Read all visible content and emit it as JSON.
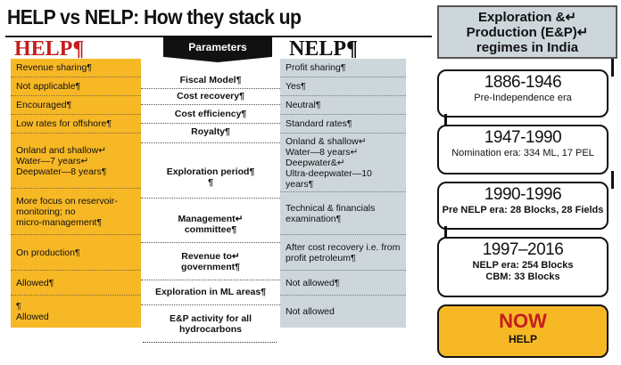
{
  "title": "HELP vs NELP: How they stack up",
  "headers": {
    "help": "HELP¶",
    "parameters": "Parameters",
    "nelp": "NELP¶"
  },
  "rows": [
    {
      "help": "Revenue sharing¶",
      "param": "Fiscal Model¶",
      "nelp": "Profit sharing¶"
    },
    {
      "help": "Not applicable¶",
      "param": "Cost recovery¶",
      "nelp": "Yes¶"
    },
    {
      "help": "Encouraged¶",
      "param": "Cost efficiency¶",
      "nelp": "Neutral¶"
    },
    {
      "help": "Low rates for offshore¶",
      "param": "Royalty¶",
      "nelp": "Standard rates¶"
    },
    {
      "help": "Onland and shallow↵\nWater—7 years↵\nDeepwater—8 years¶",
      "param": "Exploration period¶\n¶",
      "nelp": "Onland & shallow↵\nWater—8 years↵\nDeepwater&↵\nUltra-deepwater—10 years¶"
    },
    {
      "help": "More focus on reservoir-\nmonitoring; no\nmicro-management¶",
      "param": "Management↵\ncommittee¶",
      "nelp": "Technical & financials\nexamination¶"
    },
    {
      "help": "On production¶",
      "param": "Revenue to↵\ngovernment¶",
      "nelp": "After cost recovery i.e. from\nprofit petroleum¶"
    },
    {
      "help": "Allowed¶",
      "param": "Exploration in ML areas¶",
      "nelp": "Not allowed¶"
    },
    {
      "help": "¶\nAllowed",
      "param": "E&P activity for all\nhydrocarbons",
      "nelp": "Not allowed"
    }
  ],
  "panel": {
    "heading": "Exploration &↵\nProduction (E&P)↵\nregimes in India",
    "eras": [
      {
        "years": "1886-1946",
        "label": "Pre-Independence era"
      },
      {
        "years": "1947-1990",
        "label": "Nomination era: 334 ML, 17 PEL"
      },
      {
        "years": "1990-1996",
        "label": "Pre NELP era: 28 Blocks, 28 Fields"
      },
      {
        "years": "1997–2016",
        "label": "NELP era: 254 Blocks",
        "label2": "CBM: 33 Blocks"
      }
    ],
    "now": "NOW",
    "now_sub": "HELP"
  },
  "colors": {
    "help_bg": "#f7b825",
    "nelp_bg": "#cdd6db",
    "accent_red": "#c41d1d"
  }
}
